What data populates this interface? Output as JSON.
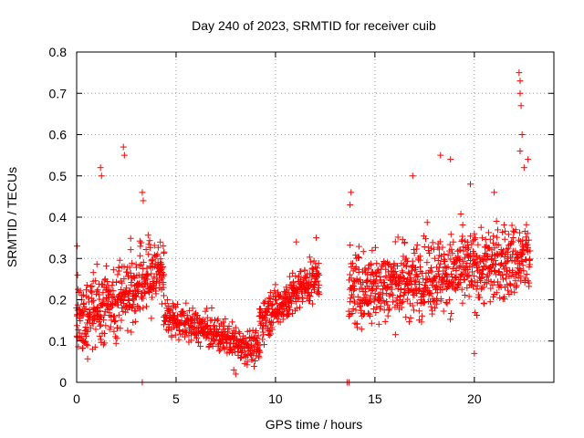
{
  "chart_data": {
    "type": "scatter",
    "title": "Day 240 of 2023, SRMTID for receiver cuib",
    "xlabel": "GPS time / hours",
    "ylabel": "SRMTID / TECUs",
    "xlim": [
      0,
      24
    ],
    "ylim": [
      0,
      0.8
    ],
    "xticks": [
      0,
      5,
      10,
      15,
      20
    ],
    "yticks": [
      0,
      0.1,
      0.2,
      0.3,
      0.4,
      0.5,
      0.6,
      0.7,
      0.8
    ],
    "xtick_labels": [
      "0",
      "5",
      "10",
      "15",
      "20"
    ],
    "ytick_labels": [
      "0",
      "0.1",
      "0.2",
      "0.3",
      "0.4",
      "0.5",
      "0.6",
      "0.7",
      "0.8"
    ],
    "grid": true,
    "marker": "+",
    "color": "#ff0000",
    "segments": [
      {
        "x_start": 0.0,
        "x_end": 4.4,
        "y_start": 0.14,
        "y_end": 0.28,
        "spread": 0.09,
        "density": 32
      },
      {
        "x_start": 4.4,
        "x_end": 9.2,
        "y_start": 0.16,
        "y_end": 0.08,
        "spread": 0.04,
        "density": 26
      },
      {
        "x_start": 9.2,
        "x_end": 12.2,
        "y_start": 0.15,
        "y_end": 0.26,
        "spread": 0.05,
        "density": 30
      },
      {
        "x_start": 13.7,
        "x_end": 22.8,
        "y_start": 0.22,
        "y_end": 0.3,
        "spread": 0.09,
        "density": 30
      }
    ],
    "points": [
      [
        0.02,
        0.33
      ],
      [
        0.05,
        0.26
      ],
      [
        1.2,
        0.52
      ],
      [
        1.25,
        0.5
      ],
      [
        2.35,
        0.57
      ],
      [
        2.4,
        0.55
      ],
      [
        3.3,
        0.46
      ],
      [
        3.35,
        0.44
      ],
      [
        8.0,
        0.02
      ],
      [
        7.9,
        0.03
      ],
      [
        11.05,
        0.34
      ],
      [
        12.05,
        0.35
      ],
      [
        13.75,
        0.43
      ],
      [
        13.8,
        0.46
      ],
      [
        16.9,
        0.5
      ],
      [
        18.3,
        0.55
      ],
      [
        18.8,
        0.54
      ],
      [
        19.8,
        0.48
      ],
      [
        20.0,
        0.07
      ],
      [
        21.0,
        0.46
      ],
      [
        22.25,
        0.75
      ],
      [
        22.3,
        0.73
      ],
      [
        22.3,
        0.7
      ],
      [
        22.35,
        0.67
      ],
      [
        22.4,
        0.6
      ],
      [
        22.3,
        0.56
      ],
      [
        22.5,
        0.52
      ],
      [
        22.7,
        0.54
      ],
      [
        3.3,
        0.0
      ],
      [
        13.6,
        0.0
      ],
      [
        13.7,
        0.0
      ]
    ]
  }
}
